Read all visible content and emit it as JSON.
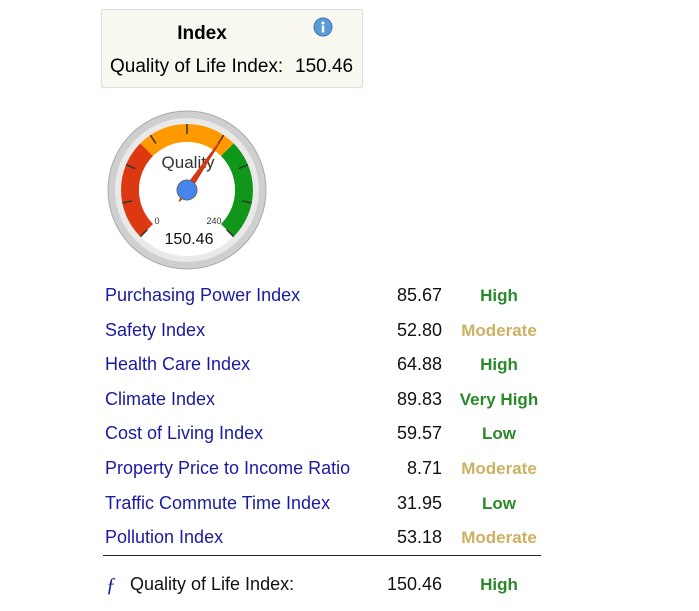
{
  "header": {
    "title": "Index",
    "label": "Quality of Life Index:",
    "value": "150.46"
  },
  "gauge": {
    "label": "Quality",
    "min": 0,
    "max": 240,
    "value": 150.46
  },
  "table": {
    "rows": [
      {
        "name": "Purchasing Power Index",
        "value": "85.67",
        "rating": "High",
        "color": "#2a8a2a"
      },
      {
        "name": "Safety Index",
        "value": "52.80",
        "rating": "Moderate",
        "color": "#cdb060"
      },
      {
        "name": "Health Care Index",
        "value": "64.88",
        "rating": "High",
        "color": "#2a8a2a"
      },
      {
        "name": "Climate Index",
        "value": "89.83",
        "rating": "Very High",
        "color": "#2a8a2a"
      },
      {
        "name": "Cost of Living Index",
        "value": "59.57",
        "rating": "Low",
        "color": "#2a8a2a"
      },
      {
        "name": "Property Price to Income Ratio",
        "value": "8.71",
        "rating": "Moderate",
        "color": "#cdb060"
      },
      {
        "name": "Traffic Commute Time Index",
        "value": "31.95",
        "rating": "Low",
        "color": "#2a8a2a"
      },
      {
        "name": "Pollution Index",
        "value": "53.18",
        "rating": "Moderate",
        "color": "#cdb060"
      }
    ]
  },
  "footer": {
    "symbol": "ƒ",
    "label": "Quality of Life Index:",
    "value": "150.46",
    "rating": "High",
    "color": "#2a8a2a"
  }
}
